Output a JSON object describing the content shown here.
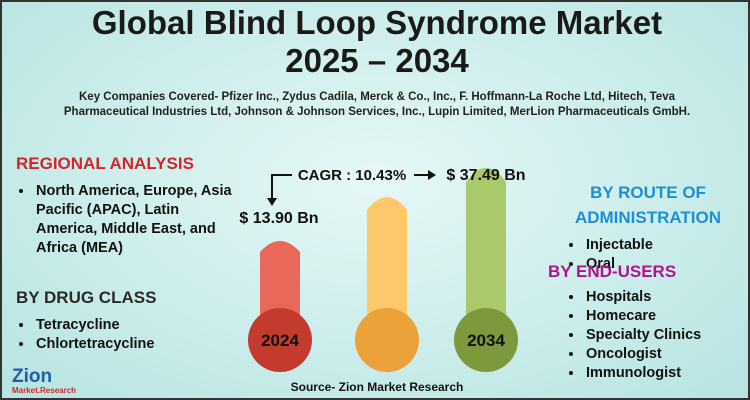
{
  "header": {
    "title": "Global Blind Loop Syndrome Market",
    "years": "2025 – 2034",
    "companies": "Key Companies Covered- Pfizer Inc., Zydus Cadila, Merck & Co., Inc., F. Hoffmann-La Roche Ltd, Hitech, Teva Pharmaceutical Industries Ltd, Johnson & Johnson Services, Inc., Lupin Limited, MerLion Pharmaceuticals GmbH."
  },
  "market": {
    "cagr": "CAGR : 10.43%",
    "value_end": "$ 37.49 Bn",
    "value_start": "$ 13.90 Bn",
    "year_start": "2024",
    "year_end": "2034"
  },
  "regional": {
    "heading": "REGIONAL ANALYSIS",
    "items": [
      "North America, Europe, Asia Pacific (APAC), Latin America, Middle East, and Africa (MEA)"
    ]
  },
  "drug_class": {
    "heading": "BY DRUG CLASS",
    "items": [
      "Tetracycline",
      "Chlortetracycline"
    ]
  },
  "route": {
    "heading": "BY ROUTE OF ADMINISTRATION",
    "items": [
      "Injectable",
      "Oral"
    ]
  },
  "end_users": {
    "heading": "BY END-USERS",
    "items": [
      "Hospitals",
      "Homecare",
      "Specialty Clinics",
      "Oncologist",
      "Immunologist"
    ]
  },
  "footer": {
    "source": "Source- Zion Market Research",
    "logo": "Zion",
    "logo_sub": "Market.Research"
  }
}
